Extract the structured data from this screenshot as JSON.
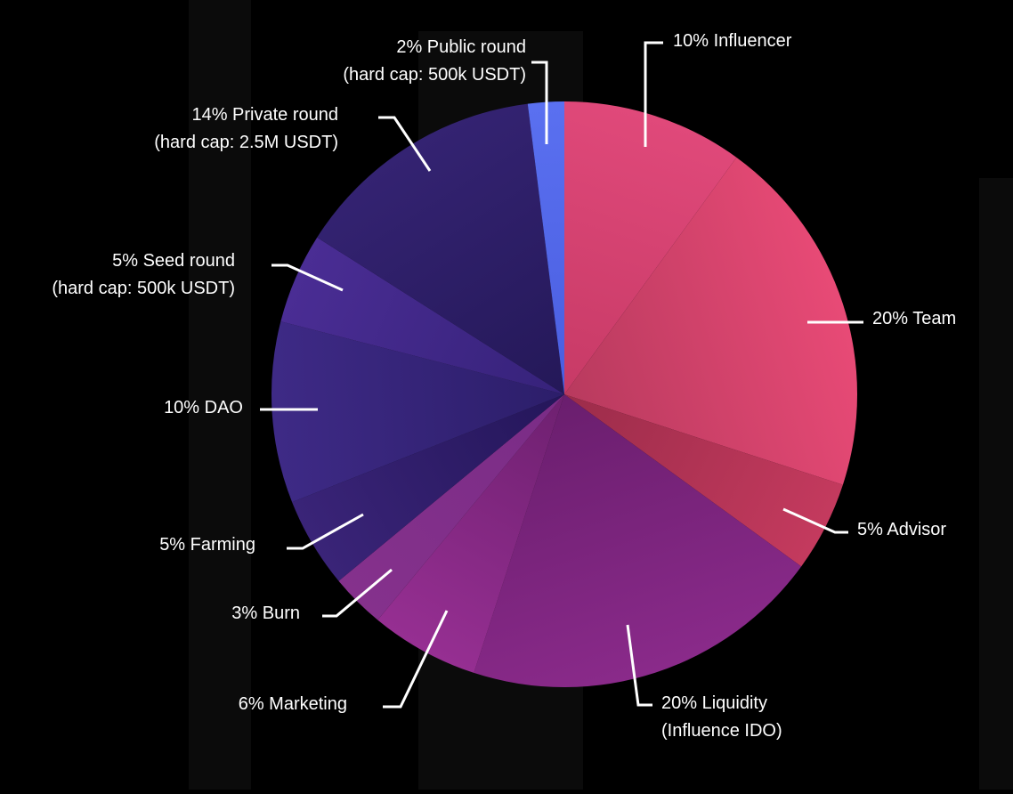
{
  "chart_data": {
    "type": "pie",
    "title": "",
    "start_angle_deg": 0,
    "direction": "clockwise",
    "slices": [
      {
        "label_lines": [
          "10% Influencer"
        ],
        "value": 10,
        "color": "#e0497a",
        "color_dark": "#c73a66"
      },
      {
        "label_lines": [
          "20% Team"
        ],
        "value": 20,
        "color": "#e84a76",
        "color_dark": "#b83a5e"
      },
      {
        "label_lines": [
          "5% Advisor"
        ],
        "value": 5,
        "color": "#c43a5e",
        "color_dark": "#9c2c4a"
      },
      {
        "label_lines": [
          "20% Liquidity",
          "(Influence IDO)"
        ],
        "value": 20,
        "color": "#8a2a8a",
        "color_dark": "#6a1e6e"
      },
      {
        "label_lines": [
          "6% Marketing"
        ],
        "value": 6,
        "color": "#962f92",
        "color_dark": "#6e2070"
      },
      {
        "label_lines": [
          "3% Burn"
        ],
        "value": 3,
        "color": "#85318c",
        "color_dark": "#7a2c86"
      },
      {
        "label_lines": [
          "5% Farming"
        ],
        "value": 5,
        "color": "#3a2478",
        "color_dark": "#24165a"
      },
      {
        "label_lines": [
          "10% DAO"
        ],
        "value": 10,
        "color": "#3e2a86",
        "color_dark": "#2c1e6a"
      },
      {
        "label_lines": [
          "5% Seed round",
          "(hard cap: 500k USDT)"
        ],
        "value": 5,
        "color": "#4a2d94",
        "color_dark": "#36227a"
      },
      {
        "label_lines": [
          "14% Private round",
          "(hard cap: 2.5M USDT)"
        ],
        "value": 14,
        "color": "#342372",
        "color_dark": "#241858"
      },
      {
        "label_lines": [
          "2% Public round",
          "(hard cap: 500k USDT)"
        ],
        "value": 2,
        "color": "#5a70f0",
        "color_dark": "#4a5ee0"
      }
    ]
  }
}
